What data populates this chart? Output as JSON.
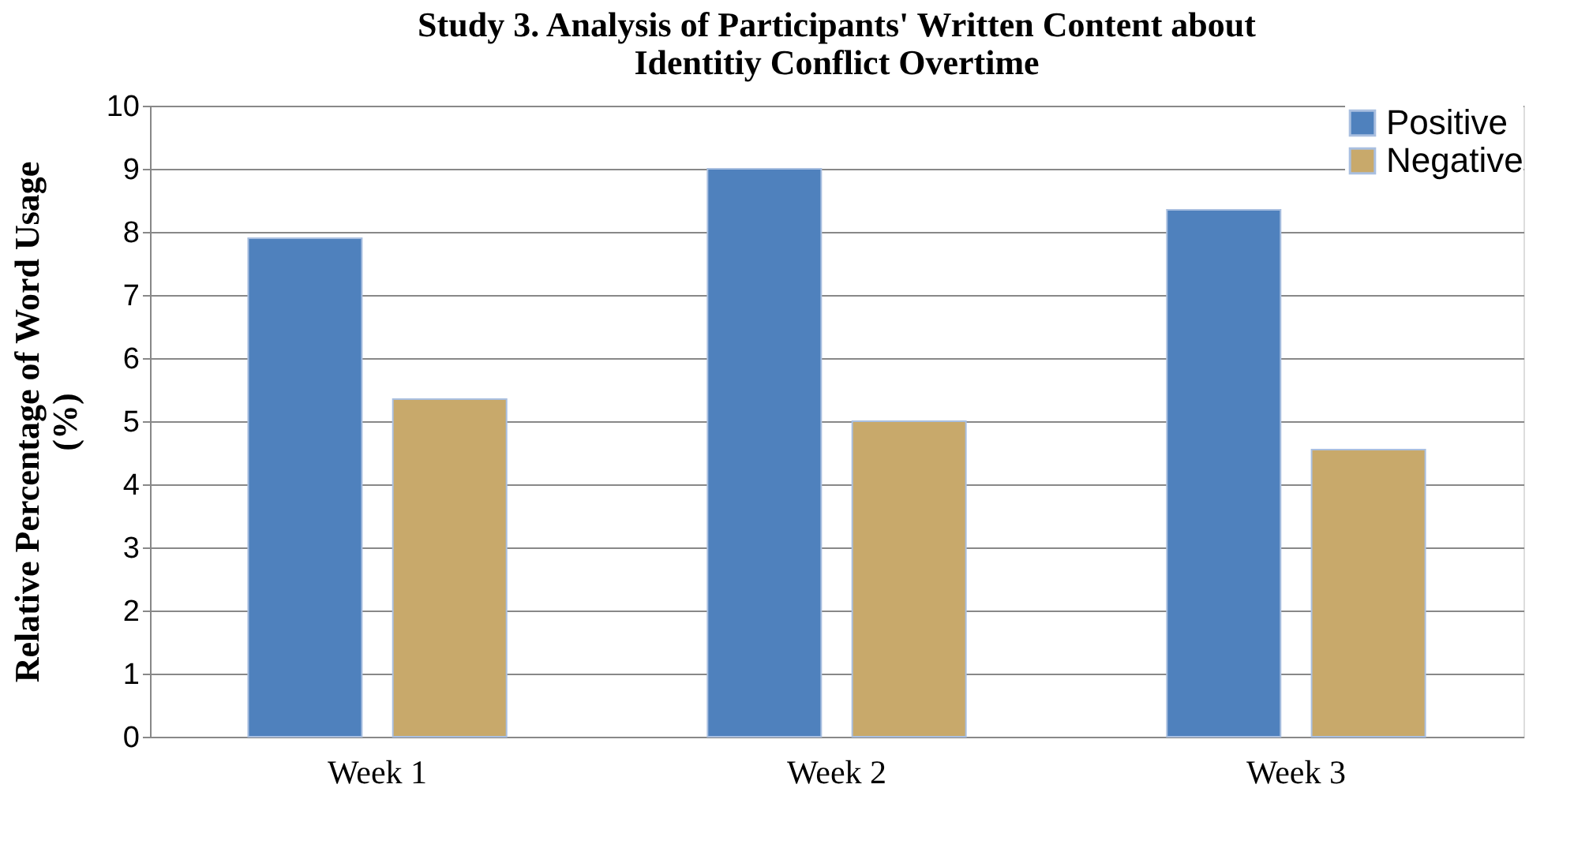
{
  "chart_data": {
    "type": "bar",
    "title": "Study 3. Analysis of Participants' Written Content about Identitiy Conflict Overtime",
    "ylabel": "Relative Percentage of Word Usage (%)",
    "categories": [
      "Week 1",
      "Week 2",
      "Week 3"
    ],
    "series": [
      {
        "name": "Positive",
        "color": "#4f81bd",
        "values": [
          7.9,
          9.0,
          8.35
        ]
      },
      {
        "name": "Negative",
        "color": "#c8a96b",
        "values": [
          5.35,
          5.0,
          4.55
        ]
      }
    ],
    "ylim": [
      0,
      10
    ],
    "yticks": [
      0,
      1,
      2,
      3,
      4,
      5,
      6,
      7,
      8,
      9,
      10
    ],
    "grid": "y",
    "legend": "top right"
  }
}
